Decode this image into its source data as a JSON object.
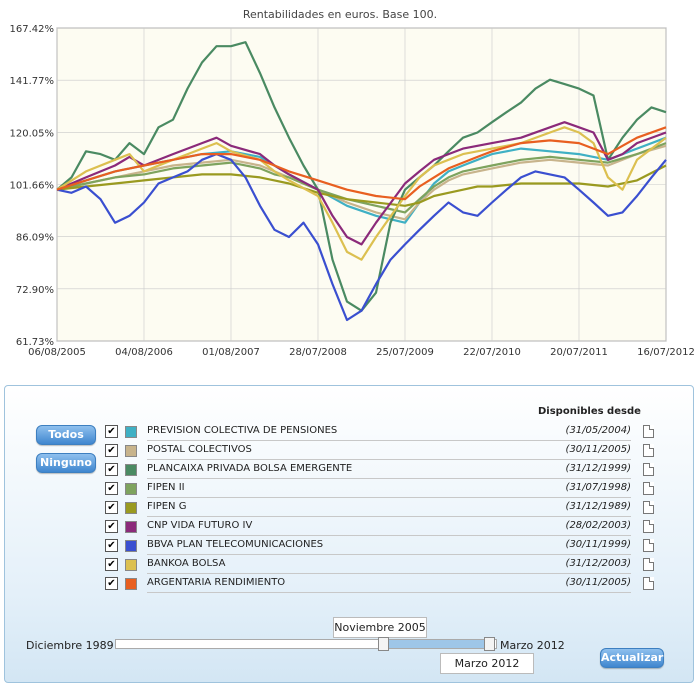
{
  "chart_data": {
    "type": "line",
    "title": "Rentabilidades en euros. Base 100.",
    "xlabel": "",
    "ylabel": "",
    "x_ticks": [
      "06/08/2005",
      "04/08/2006",
      "01/08/2007",
      "28/07/2008",
      "25/07/2009",
      "22/07/2010",
      "20/07/2011",
      "16/07/2012"
    ],
    "y_ticks": [
      "61.73%",
      "72.90%",
      "86.09%",
      "101.66%",
      "120.05%",
      "141.77%",
      "167.42%"
    ],
    "ylim": [
      61.73,
      167.42
    ],
    "y_scale": "log",
    "xlim": [
      0,
      84
    ],
    "x_unit": "months since 06/08/2005",
    "grid": true,
    "legend": "none",
    "series": [
      {
        "name": "PREVISION COLECTIVA DE PENSIONES",
        "color": "#3fb0c4",
        "x": [
          0,
          4,
          8,
          12,
          16,
          20,
          24,
          28,
          30,
          32,
          36,
          40,
          44,
          48,
          50,
          52,
          54,
          56,
          58,
          60,
          64,
          68,
          72,
          76,
          80,
          84
        ],
        "y": [
          100,
          103,
          106,
          108,
          110,
          112,
          113,
          111,
          108,
          105,
          100,
          95,
          92,
          90,
          96,
          102,
          106,
          108,
          110,
          112,
          114,
          113,
          112,
          110,
          114,
          118
        ]
      },
      {
        "name": "POSTAL COLECTIVOS",
        "color": "#c8b48c",
        "x": [
          0,
          4,
          8,
          12,
          16,
          20,
          24,
          28,
          30,
          32,
          36,
          40,
          44,
          48,
          50,
          52,
          54,
          56,
          58,
          60,
          64,
          68,
          72,
          76,
          80,
          84
        ],
        "y": [
          100,
          102,
          104,
          106,
          108,
          109,
          110,
          108,
          106,
          104,
          100,
          96,
          93,
          91,
          96,
          100,
          103,
          105,
          106,
          107,
          109,
          110,
          109,
          108,
          112,
          115
        ]
      },
      {
        "name": "PLANCAIXA PRIVADA BOLSA EMERGENTE",
        "color": "#4a8a62",
        "x": [
          0,
          2,
          4,
          6,
          8,
          10,
          12,
          14,
          16,
          18,
          20,
          22,
          24,
          26,
          28,
          30,
          32,
          34,
          36,
          38,
          40,
          42,
          44,
          46,
          48,
          50,
          52,
          54,
          56,
          58,
          60,
          62,
          64,
          66,
          68,
          70,
          72,
          74,
          76,
          78,
          80,
          82,
          84
        ],
        "y": [
          100,
          104,
          113,
          112,
          110,
          116,
          112,
          122,
          125,
          138,
          150,
          158,
          158,
          160,
          145,
          130,
          118,
          108,
          100,
          80,
          70,
          68,
          72,
          90,
          100,
          104,
          108,
          113,
          118,
          120,
          124,
          128,
          132,
          138,
          142,
          140,
          138,
          135,
          110,
          118,
          125,
          130,
          128
        ]
      },
      {
        "name": "FIPEN II",
        "color": "#7ea35e",
        "x": [
          0,
          4,
          8,
          12,
          16,
          20,
          24,
          28,
          30,
          32,
          36,
          40,
          44,
          48,
          50,
          52,
          54,
          56,
          58,
          60,
          64,
          68,
          72,
          76,
          80,
          84
        ],
        "y": [
          100,
          102,
          104,
          105,
          107,
          108,
          109,
          107,
          105,
          104,
          100,
          97,
          95,
          93,
          97,
          101,
          104,
          106,
          107,
          108,
          110,
          111,
          110,
          109,
          112,
          116
        ]
      },
      {
        "name": "FIPEN G",
        "color": "#9a9a20",
        "x": [
          0,
          4,
          8,
          12,
          16,
          20,
          24,
          28,
          30,
          32,
          36,
          40,
          44,
          48,
          50,
          52,
          54,
          56,
          58,
          60,
          64,
          68,
          72,
          76,
          80,
          84
        ],
        "y": [
          100,
          101,
          102,
          103,
          104,
          105,
          105,
          104,
          103,
          102,
          99,
          97,
          96,
          95,
          96,
          98,
          99,
          100,
          101,
          101,
          102,
          102,
          102,
          101,
          103,
          108
        ]
      },
      {
        "name": "CNP VIDA FUTURO IV",
        "color": "#8b2a7a",
        "x": [
          0,
          4,
          8,
          10,
          12,
          16,
          20,
          22,
          24,
          28,
          30,
          32,
          36,
          38,
          40,
          42,
          44,
          48,
          50,
          52,
          54,
          56,
          58,
          60,
          64,
          68,
          70,
          72,
          74,
          76,
          78,
          80,
          84
        ],
        "y": [
          100,
          104,
          108,
          111,
          108,
          112,
          116,
          118,
          115,
          112,
          108,
          105,
          100,
          92,
          86,
          84,
          90,
          102,
          106,
          110,
          112,
          114,
          115,
          116,
          118,
          122,
          124,
          122,
          120,
          110,
          112,
          116,
          120
        ]
      },
      {
        "name": "BBVA PLAN TELECOMUNICACIONES",
        "color": "#3a4fd0",
        "x": [
          0,
          2,
          4,
          6,
          8,
          10,
          12,
          14,
          16,
          18,
          20,
          22,
          24,
          26,
          28,
          30,
          32,
          34,
          36,
          38,
          40,
          42,
          44,
          46,
          48,
          50,
          52,
          54,
          56,
          58,
          60,
          62,
          64,
          66,
          68,
          70,
          72,
          74,
          76,
          78,
          80,
          82,
          84
        ],
        "y": [
          100,
          99,
          101,
          97,
          90,
          92,
          96,
          102,
          104,
          106,
          110,
          112,
          110,
          104,
          95,
          88,
          86,
          90,
          84,
          74,
          66,
          68,
          74,
          80,
          84,
          88,
          92,
          96,
          93,
          92,
          96,
          100,
          104,
          106,
          105,
          104,
          100,
          96,
          92,
          93,
          98,
          104,
          110
        ]
      },
      {
        "name": "BANKOA BOLSA",
        "color": "#dcc050",
        "x": [
          0,
          4,
          8,
          10,
          12,
          16,
          20,
          22,
          24,
          28,
          30,
          32,
          36,
          38,
          40,
          42,
          44,
          48,
          50,
          52,
          54,
          56,
          58,
          60,
          64,
          68,
          70,
          72,
          74,
          76,
          78,
          80,
          84
        ],
        "y": [
          100,
          106,
          110,
          112,
          106,
          110,
          114,
          116,
          113,
          110,
          106,
          103,
          98,
          90,
          82,
          80,
          86,
          98,
          104,
          108,
          110,
          112,
          113,
          114,
          116,
          120,
          122,
          120,
          116,
          104,
          100,
          110,
          118
        ]
      },
      {
        "name": "ARGENTARIA RENDIMIENTO",
        "color": "#e85f20",
        "x": [
          0,
          4,
          8,
          12,
          16,
          20,
          24,
          28,
          30,
          32,
          36,
          40,
          44,
          48,
          50,
          52,
          54,
          56,
          58,
          60,
          64,
          68,
          72,
          76,
          78,
          80,
          84
        ],
        "y": [
          100,
          103,
          106,
          108,
          110,
          112,
          112,
          110,
          108,
          106,
          103,
          100,
          98,
          97,
          101,
          104,
          107,
          109,
          111,
          113,
          116,
          117,
          116,
          112,
          115,
          118,
          122
        ]
      }
    ]
  },
  "controls": {
    "todos_label": "Todos",
    "ninguno_label": "Ninguno",
    "available_header": "Disponibles desde",
    "funds": [
      {
        "name": "PREVISION COLECTIVA DE PENSIONES",
        "date": "(31/05/2004)",
        "color": "#3fb0c4",
        "checked": "✔"
      },
      {
        "name": "POSTAL COLECTIVOS",
        "date": "(30/11/2005)",
        "color": "#c8b48c",
        "checked": "✔"
      },
      {
        "name": "PLANCAIXA PRIVADA BOLSA EMERGENTE",
        "date": "(31/12/1999)",
        "color": "#4a8a62",
        "checked": "✔"
      },
      {
        "name": "FIPEN II",
        "date": "(31/07/1998)",
        "color": "#7ea35e",
        "checked": "✔"
      },
      {
        "name": "FIPEN G",
        "date": "(31/12/1989)",
        "color": "#9a9a20",
        "checked": "✔"
      },
      {
        "name": "CNP VIDA FUTURO IV",
        "date": "(28/02/2003)",
        "color": "#8b2a7a",
        "checked": "✔"
      },
      {
        "name": "BBVA PLAN TELECOMUNICACIONES",
        "date": "(30/11/1999)",
        "color": "#3a4fd0",
        "checked": "✔"
      },
      {
        "name": "BANKOA BOLSA",
        "date": "(31/12/2003)",
        "color": "#dcc050",
        "checked": "✔"
      },
      {
        "name": "ARGENTARIA RENDIMIENTO",
        "date": "(30/11/2005)",
        "color": "#e85f20",
        "checked": "✔"
      }
    ],
    "range_min_label": "Diciembre 1989",
    "range_max_label": "Marzo 2012",
    "range_start": "Noviembre 2005",
    "range_end": "Marzo 2012",
    "update_label": "Actualizar"
  }
}
